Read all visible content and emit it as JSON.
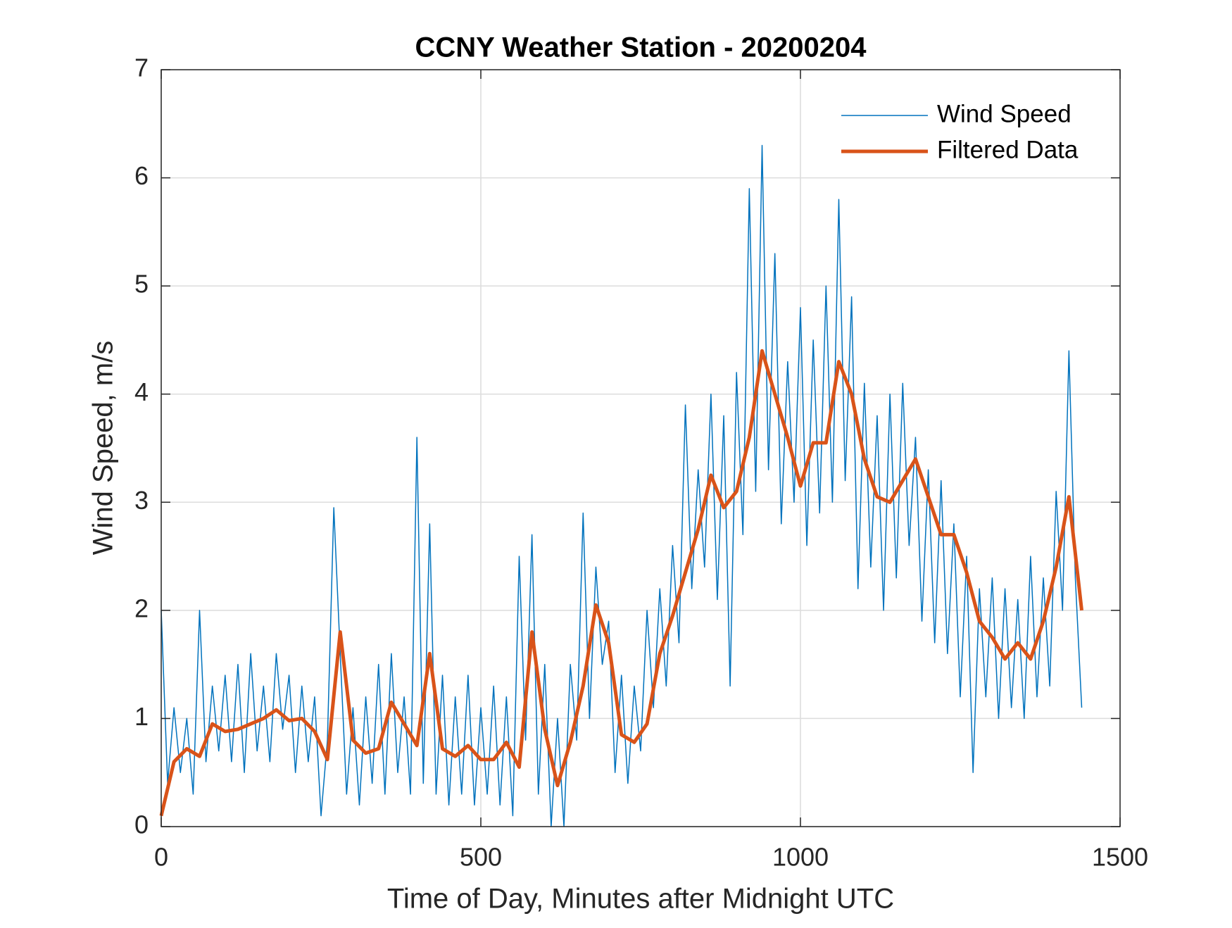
{
  "chart_data": {
    "type": "line",
    "title": "CCNY Weather Station - 20200204",
    "x_label": "Time of Day, Minutes after Midnight UTC",
    "y_label": "Wind Speed, m/s",
    "xlim": [
      0,
      1500
    ],
    "xticks": [
      0,
      500,
      1000,
      1500
    ],
    "ylim": [
      0,
      7
    ],
    "yticks": [
      0,
      1,
      2,
      3,
      4,
      5,
      6,
      7
    ],
    "grid": true,
    "legend": "northeast",
    "series": [
      {
        "name": "Wind Speed",
        "color": "#0072BD",
        "x": [
          0,
          10,
          20,
          30,
          40,
          50,
          60,
          70,
          80,
          90,
          100,
          110,
          120,
          130,
          140,
          150,
          160,
          170,
          180,
          190,
          200,
          210,
          220,
          230,
          240,
          250,
          260,
          270,
          280,
          290,
          300,
          310,
          320,
          330,
          340,
          350,
          360,
          370,
          380,
          390,
          400,
          410,
          420,
          430,
          440,
          450,
          460,
          470,
          480,
          490,
          500,
          510,
          520,
          530,
          540,
          550,
          560,
          570,
          580,
          590,
          600,
          610,
          620,
          630,
          640,
          650,
          660,
          670,
          680,
          690,
          700,
          710,
          720,
          730,
          740,
          750,
          760,
          770,
          780,
          790,
          800,
          810,
          820,
          830,
          840,
          850,
          860,
          870,
          880,
          890,
          900,
          910,
          920,
          930,
          940,
          950,
          960,
          970,
          980,
          990,
          1000,
          1010,
          1020,
          1030,
          1040,
          1050,
          1060,
          1070,
          1080,
          1090,
          1100,
          1110,
          1120,
          1130,
          1140,
          1150,
          1160,
          1170,
          1180,
          1190,
          1200,
          1210,
          1220,
          1230,
          1240,
          1250,
          1260,
          1270,
          1280,
          1290,
          1300,
          1310,
          1320,
          1330,
          1340,
          1350,
          1360,
          1370,
          1380,
          1390,
          1400,
          1410,
          1420,
          1430,
          1440
        ],
        "values": [
          2.0,
          0.4,
          1.1,
          0.5,
          1.0,
          0.3,
          2.0,
          0.6,
          1.3,
          0.7,
          1.4,
          0.6,
          1.5,
          0.5,
          1.6,
          0.7,
          1.3,
          0.6,
          1.6,
          0.9,
          1.4,
          0.5,
          1.3,
          0.6,
          1.2,
          0.1,
          0.8,
          2.95,
          1.6,
          0.3,
          1.1,
          0.2,
          1.2,
          0.4,
          1.5,
          0.3,
          1.6,
          0.5,
          1.2,
          0.3,
          3.6,
          0.4,
          2.8,
          0.3,
          1.4,
          0.2,
          1.2,
          0.3,
          1.4,
          0.2,
          1.1,
          0.3,
          1.3,
          0.2,
          1.2,
          0.1,
          2.5,
          0.8,
          2.7,
          0.3,
          1.5,
          0.0,
          1.0,
          0.0,
          1.5,
          0.8,
          2.9,
          1.0,
          2.4,
          1.5,
          1.9,
          0.5,
          1.4,
          0.4,
          1.3,
          0.7,
          2.0,
          1.1,
          2.2,
          1.3,
          2.6,
          1.7,
          3.9,
          2.2,
          3.3,
          2.4,
          4.0,
          2.1,
          3.8,
          1.3,
          4.2,
          2.7,
          5.9,
          3.1,
          6.3,
          3.3,
          5.3,
          2.8,
          4.3,
          3.0,
          4.8,
          2.6,
          4.5,
          2.9,
          5.0,
          3.0,
          5.8,
          3.2,
          4.9,
          2.2,
          4.1,
          2.4,
          3.8,
          2.0,
          4.0,
          2.3,
          4.1,
          2.6,
          3.6,
          1.9,
          3.3,
          1.7,
          3.2,
          1.6,
          2.8,
          1.2,
          2.5,
          0.5,
          2.2,
          1.2,
          2.3,
          1.0,
          2.2,
          1.1,
          2.1,
          1.0,
          2.5,
          1.2,
          2.3,
          1.3,
          3.1,
          2.0,
          4.4,
          2.3,
          1.1
        ]
      },
      {
        "name": "Filtered Data",
        "color": "#D95319",
        "x": [
          0,
          20,
          40,
          60,
          80,
          100,
          120,
          140,
          160,
          180,
          200,
          220,
          240,
          260,
          280,
          300,
          320,
          340,
          360,
          380,
          400,
          420,
          440,
          460,
          480,
          500,
          520,
          540,
          560,
          580,
          600,
          620,
          640,
          660,
          680,
          700,
          720,
          740,
          760,
          780,
          800,
          820,
          840,
          860,
          880,
          900,
          920,
          940,
          960,
          980,
          1000,
          1020,
          1040,
          1060,
          1080,
          1100,
          1120,
          1140,
          1160,
          1180,
          1200,
          1220,
          1240,
          1260,
          1280,
          1300,
          1320,
          1340,
          1360,
          1380,
          1400,
          1420,
          1440
        ],
        "values": [
          0.1,
          0.6,
          0.72,
          0.65,
          0.95,
          0.88,
          0.9,
          0.95,
          1.0,
          1.08,
          0.98,
          1.0,
          0.88,
          0.62,
          1.8,
          0.8,
          0.68,
          0.72,
          1.15,
          0.95,
          0.75,
          1.6,
          0.72,
          0.65,
          0.75,
          0.62,
          0.62,
          0.78,
          0.55,
          1.8,
          0.9,
          0.38,
          0.78,
          1.3,
          2.05,
          1.7,
          0.85,
          0.78,
          0.95,
          1.6,
          1.95,
          2.35,
          2.75,
          3.25,
          2.95,
          3.1,
          3.6,
          4.4,
          4.0,
          3.6,
          3.15,
          3.55,
          3.55,
          4.3,
          4.0,
          3.4,
          3.05,
          3.0,
          3.2,
          3.4,
          3.05,
          2.7,
          2.7,
          2.35,
          1.9,
          1.75,
          1.55,
          1.7,
          1.55,
          1.9,
          2.4,
          3.05,
          2.0
        ]
      }
    ]
  }
}
